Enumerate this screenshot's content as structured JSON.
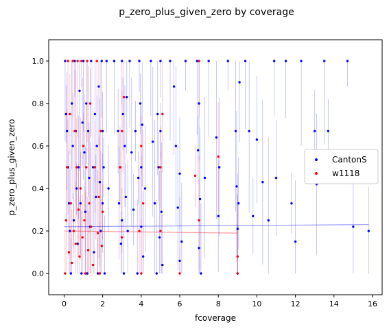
{
  "chart_data": {
    "type": "scatter",
    "title": "p_zero_plus_given_zero by coverage",
    "xlabel": "fcoverage",
    "ylabel": "p_zero_plus_given_zero",
    "xlim": [
      -0.8,
      16.5
    ],
    "ylim": [
      -0.1,
      1.1
    ],
    "xticks": [
      "0",
      "2",
      "4",
      "6",
      "8",
      "10",
      "12",
      "14",
      "16"
    ],
    "yticks": [
      "0.0",
      "0.2",
      "0.4",
      "0.6",
      "0.8",
      "1.0"
    ],
    "legend_position": "center-right",
    "grid": false,
    "series": [
      {
        "name": "CantonS",
        "color": "#0000ff",
        "fit_line": [
          [
            0,
            0.22
          ],
          [
            15.8,
            0.23
          ]
        ],
        "points": [
          [
            0.05,
            1.0
          ],
          [
            0.1,
            0.75
          ],
          [
            0.15,
            0.67
          ],
          [
            0.2,
            0.5
          ],
          [
            0.25,
            0.33
          ],
          [
            0.3,
            0.2
          ],
          [
            0.35,
            0.0
          ],
          [
            0.4,
            0.8
          ],
          [
            0.45,
            0.6
          ],
          [
            0.5,
            0.25
          ],
          [
            0.55,
            1.0
          ],
          [
            0.6,
            0.67
          ],
          [
            0.65,
            0.4
          ],
          [
            0.7,
            0.14
          ],
          [
            0.75,
            0.5
          ],
          [
            0.8,
            0.86
          ],
          [
            0.85,
            0.33
          ],
          [
            0.9,
            0.0
          ],
          [
            0.95,
            0.71
          ],
          [
            1.0,
            1.0
          ],
          [
            1.05,
            0.57
          ],
          [
            1.1,
            0.29
          ],
          [
            1.15,
            0.8
          ],
          [
            1.2,
            0.0
          ],
          [
            1.25,
            0.67
          ],
          [
            1.3,
            0.45
          ],
          [
            1.35,
            0.22
          ],
          [
            1.4,
            1.0
          ],
          [
            1.5,
            0.5
          ],
          [
            1.55,
            0.1
          ],
          [
            1.6,
            0.75
          ],
          [
            1.65,
            0.36
          ],
          [
            1.7,
            0.6
          ],
          [
            1.75,
            0.0
          ],
          [
            1.8,
            0.88
          ],
          [
            1.85,
            0.43
          ],
          [
            1.9,
            0.2
          ],
          [
            1.95,
            1.0
          ],
          [
            2.0,
            0.67
          ],
          [
            2.0,
            0.33
          ],
          [
            2.05,
            0.5
          ],
          [
            2.1,
            0.0
          ],
          [
            2.2,
            1.0
          ],
          [
            2.3,
            0.4
          ],
          [
            2.6,
            1.0
          ],
          [
            2.8,
            0.67
          ],
          [
            2.85,
            0.33
          ],
          [
            2.9,
            0.5
          ],
          [
            2.95,
            0.14
          ],
          [
            3.0,
            1.0
          ],
          [
            3.0,
            0.25
          ],
          [
            3.05,
            0.75
          ],
          [
            3.1,
            0.0
          ],
          [
            3.15,
            0.6
          ],
          [
            3.2,
            0.36
          ],
          [
            3.25,
            0.83
          ],
          [
            3.3,
            0.2
          ],
          [
            3.4,
            1.0
          ],
          [
            3.5,
            0.57
          ],
          [
            3.6,
            0.3
          ],
          [
            3.7,
            0.67
          ],
          [
            3.8,
            0.0
          ],
          [
            3.85,
            0.45
          ],
          [
            3.9,
            1.0
          ],
          [
            3.95,
            0.8
          ],
          [
            4.0,
            0.5
          ],
          [
            4.0,
            0.22
          ],
          [
            4.05,
            0.7
          ],
          [
            4.1,
            0.08
          ],
          [
            4.2,
            0.4
          ],
          [
            4.5,
            1.0
          ],
          [
            4.6,
            0.62
          ],
          [
            4.7,
            0.33
          ],
          [
            4.8,
            0.0
          ],
          [
            4.85,
            0.75
          ],
          [
            4.9,
            0.5
          ],
          [
            4.95,
            0.17
          ],
          [
            5.0,
            1.0
          ],
          [
            5.0,
            0.67
          ],
          [
            5.05,
            0.29
          ],
          [
            5.1,
            0.04
          ],
          [
            5.5,
            1.0
          ],
          [
            5.7,
            0.88
          ],
          [
            5.8,
            0.6
          ],
          [
            5.9,
            0.31
          ],
          [
            6.0,
            0.47
          ],
          [
            6.0,
            0.06
          ],
          [
            6.1,
            0.15
          ],
          [
            6.3,
            1.0
          ],
          [
            6.9,
            1.0
          ],
          [
            6.95,
            0.58
          ],
          [
            7.0,
            0.8
          ],
          [
            7.0,
            0.12
          ],
          [
            7.05,
            0.35
          ],
          [
            7.1,
            0.0
          ],
          [
            7.3,
            0.45
          ],
          [
            7.5,
            1.0
          ],
          [
            7.9,
            0.64
          ],
          [
            8.0,
            0.27
          ],
          [
            8.05,
            0.5
          ],
          [
            8.5,
            1.0
          ],
          [
            8.9,
            0.67
          ],
          [
            8.95,
            0.41
          ],
          [
            9.0,
            0.21
          ],
          [
            9.0,
            0.0
          ],
          [
            9.05,
            0.33
          ],
          [
            9.1,
            0.9
          ],
          [
            9.4,
            1.0
          ],
          [
            9.6,
            0.67
          ],
          [
            9.8,
            0.27
          ],
          [
            10.0,
            0.63
          ],
          [
            10.3,
            0.43
          ],
          [
            10.6,
            0.25
          ],
          [
            10.9,
            1.0
          ],
          [
            11.0,
            0.45
          ],
          [
            11.5,
            1.0
          ],
          [
            11.8,
            0.33
          ],
          [
            12.0,
            0.15
          ],
          [
            12.3,
            1.0
          ],
          [
            13.0,
            0.67
          ],
          [
            13.1,
            0.42
          ],
          [
            13.5,
            1.0
          ],
          [
            13.7,
            0.67
          ],
          [
            14.7,
            1.0
          ],
          [
            15.0,
            0.22
          ],
          [
            15.8,
            0.2
          ]
        ]
      },
      {
        "name": "w1118",
        "color": "#ff0000",
        "fit_line": [
          [
            0,
            0.2
          ],
          [
            9.0,
            0.19
          ]
        ],
        "points": [
          [
            0.05,
            0.0
          ],
          [
            0.1,
            0.25
          ],
          [
            0.15,
            0.5
          ],
          [
            0.2,
            1.0
          ],
          [
            0.25,
            0.1
          ],
          [
            0.3,
            0.75
          ],
          [
            0.35,
            0.33
          ],
          [
            0.4,
            0.05
          ],
          [
            0.45,
            1.0
          ],
          [
            0.5,
            0.2
          ],
          [
            0.55,
            0.67
          ],
          [
            0.6,
            0.14
          ],
          [
            0.65,
            0.5
          ],
          [
            0.7,
            1.0
          ],
          [
            0.75,
            0.3
          ],
          [
            0.8,
            0.08
          ],
          [
            0.85,
            0.4
          ],
          [
            0.9,
            1.0
          ],
          [
            0.95,
            0.17
          ],
          [
            1.0,
            0.6
          ],
          [
            1.05,
            0.25
          ],
          [
            1.1,
            0.0
          ],
          [
            1.15,
            0.5
          ],
          [
            1.2,
            1.0
          ],
          [
            1.25,
            0.11
          ],
          [
            1.3,
            0.33
          ],
          [
            1.35,
            0.8
          ],
          [
            1.4,
            0.22
          ],
          [
            1.5,
            0.04
          ],
          [
            1.6,
            0.5
          ],
          [
            1.7,
            1.0
          ],
          [
            1.75,
            0.19
          ],
          [
            1.8,
            0.36
          ],
          [
            1.85,
            0.0
          ],
          [
            1.9,
            0.67
          ],
          [
            1.95,
            0.13
          ],
          [
            2.0,
            0.29
          ],
          [
            2.9,
            0.5
          ],
          [
            3.0,
            0.67
          ],
          [
            3.0,
            0.17
          ],
          [
            3.1,
            0.83
          ],
          [
            3.9,
            0.2
          ],
          [
            4.0,
            0.6
          ],
          [
            4.0,
            0.0
          ],
          [
            4.1,
            0.33
          ],
          [
            5.0,
            0.5
          ],
          [
            5.0,
            0.2
          ],
          [
            5.1,
            0.75
          ],
          [
            6.0,
            0.0
          ],
          [
            6.8,
            0.46
          ],
          [
            7.0,
            1.0
          ],
          [
            7.0,
            0.25
          ],
          [
            8.0,
            0.55
          ],
          [
            9.0,
            0.08
          ],
          [
            9.0,
            0.0
          ]
        ]
      }
    ]
  }
}
